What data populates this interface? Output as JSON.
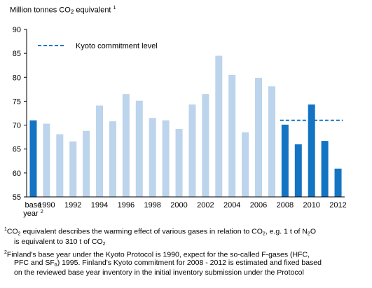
{
  "unit_label": {
    "text": "Million tonnes CO",
    "sub": "2",
    "suffix": " equivalent",
    "footnote_marker": "1"
  },
  "chart_data": {
    "type": "bar",
    "ylim": [
      55,
      90
    ],
    "yticks": [
      55,
      60,
      65,
      70,
      75,
      80,
      85,
      90
    ],
    "grid": false,
    "legend_position": "top-left",
    "categories": [
      "base year",
      "1990",
      "1991",
      "1992",
      "1993",
      "1994",
      "1995",
      "1996",
      "1997",
      "1998",
      "1999",
      "2000",
      "2001",
      "2002",
      "2003",
      "2004",
      "2005",
      "2006",
      "2007",
      "2008",
      "2009",
      "2010",
      "2011",
      "2012"
    ],
    "xtick_labels": [
      {
        "category": "base year",
        "lines": [
          "base",
          "year"
        ],
        "footnote": "2"
      },
      {
        "category": "1990",
        "lines": [
          "1990"
        ]
      },
      {
        "category": "1992",
        "lines": [
          "1992"
        ]
      },
      {
        "category": "1994",
        "lines": [
          "1994"
        ]
      },
      {
        "category": "1996",
        "lines": [
          "1996"
        ]
      },
      {
        "category": "1998",
        "lines": [
          "1998"
        ]
      },
      {
        "category": "2000",
        "lines": [
          "2000"
        ]
      },
      {
        "category": "2002",
        "lines": [
          "2002"
        ]
      },
      {
        "category": "2004",
        "lines": [
          "2004"
        ]
      },
      {
        "category": "2006",
        "lines": [
          "2006"
        ]
      },
      {
        "category": "2008",
        "lines": [
          "2008"
        ]
      },
      {
        "category": "2010",
        "lines": [
          "2010"
        ]
      },
      {
        "category": "2012",
        "lines": [
          "2012"
        ]
      }
    ],
    "values": [
      71.0,
      70.3,
      68.1,
      66.6,
      68.8,
      74.1,
      70.8,
      76.5,
      75.1,
      71.5,
      71.0,
      69.2,
      74.3,
      76.5,
      84.5,
      80.5,
      68.5,
      79.9,
      78.1,
      70.1,
      66.0,
      74.3,
      66.7,
      60.9
    ],
    "bar_kind": [
      "dark",
      "light",
      "light",
      "light",
      "light",
      "light",
      "light",
      "light",
      "light",
      "light",
      "light",
      "light",
      "light",
      "light",
      "light",
      "light",
      "light",
      "light",
      "light",
      "dark",
      "dark",
      "dark",
      "dark",
      "dark"
    ],
    "colors": {
      "dark": "#1474c4",
      "light": "#bcd4ec",
      "kyoto_line": "#1474c4"
    },
    "kyoto_line": {
      "label": "Kyoto commitment level",
      "value": 71.0,
      "from": "2008",
      "to": "2012"
    }
  },
  "notes": [
    {
      "marker": "1",
      "segments": [
        {
          "t": "CO"
        },
        {
          "t": "2",
          "style": "sub"
        },
        {
          "t": " equivalent describes the warming effect of various gases in relation to CO"
        },
        {
          "t": "2",
          "style": "sub"
        },
        {
          "t": ", e.g. 1 t of N"
        },
        {
          "t": "2",
          "style": "sub"
        },
        {
          "t": "O"
        }
      ],
      "continuation": [
        {
          "t": "is equivalent to 310 t of CO"
        },
        {
          "t": "2",
          "style": "sub"
        }
      ]
    },
    {
      "marker": "2",
      "segments": [
        {
          "t": "Finland's base year under the Kyoto Protocol is 1990, expect for the so-called F-gases (HFC,"
        }
      ],
      "continuation": [
        {
          "t": "PFC and SF"
        },
        {
          "t": "6",
          "style": "sub"
        },
        {
          "t": ") 1995. Finland's Kyoto commitment  for 2008 - 2012 is estimated and fixed based"
        }
      ],
      "continuation2": [
        {
          "t": "on the reviewed base year inventory in the initial inventory submission under the Protocol"
        }
      ]
    }
  ]
}
